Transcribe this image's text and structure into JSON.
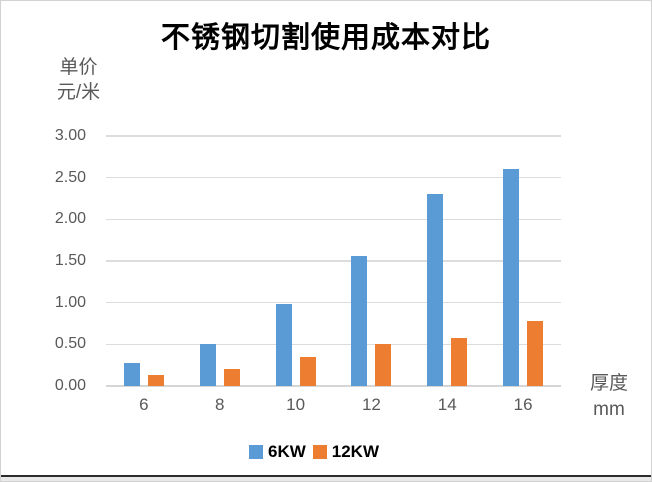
{
  "title": "不锈钢切割使用成本对比",
  "y_axis": {
    "unit_line1": "单价",
    "unit_line2": "元/米",
    "tick_labels": [
      "0.00",
      "0.50",
      "1.00",
      "1.50",
      "2.00",
      "2.50",
      "3.00"
    ]
  },
  "x_axis": {
    "title_line1": "厚度",
    "title_line2": "mm"
  },
  "colors": {
    "series_blue": "#5B9BD5",
    "series_orange": "#ED7D31",
    "gridline": "#DCDCDC",
    "axis_text": "#595959",
    "title_text": "#000000"
  },
  "chart_data": {
    "type": "bar",
    "title": "不锈钢切割使用成本对比",
    "categories": [
      "6",
      "8",
      "10",
      "12",
      "14",
      "16"
    ],
    "series": [
      {
        "name": "6KW",
        "color": "#5B9BD5",
        "values": [
          0.28,
          0.5,
          0.98,
          1.56,
          2.31,
          2.6
        ]
      },
      {
        "name": "12KW",
        "color": "#ED7D31",
        "values": [
          0.13,
          0.21,
          0.35,
          0.51,
          0.58,
          0.78
        ]
      }
    ],
    "xlabel": "厚度 mm",
    "ylabel": "单价 元/米",
    "ylim": [
      0,
      3.0
    ],
    "ytick_step": 0.5,
    "grid": true,
    "legend_position": "bottom"
  }
}
